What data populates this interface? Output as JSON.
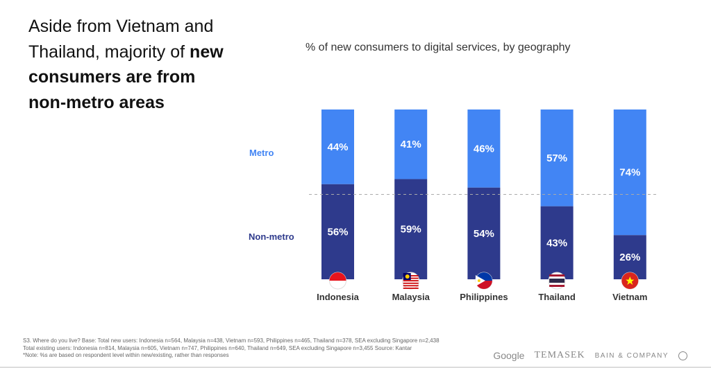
{
  "headline": {
    "part1": "Aside from Vietnam and Thailand, majority of ",
    "bold": "new consumers are from non-metro areas"
  },
  "chart_data": {
    "type": "bar",
    "stacked": true,
    "title": "% of new consumers to digital services, by geography",
    "categories": [
      "Indonesia",
      "Malaysia",
      "Philippines",
      "Thailand",
      "Vietnam"
    ],
    "series": [
      {
        "name": "Metro",
        "values": [
          44,
          41,
          46,
          57,
          74
        ],
        "color": "#4285f4"
      },
      {
        "name": "Non-metro",
        "values": [
          56,
          59,
          54,
          43,
          26
        ],
        "color": "#2e3a8c"
      }
    ],
    "ylim": [
      0,
      100
    ],
    "reference_line": 50,
    "value_suffix": "%"
  },
  "footnote": [
    "S3. Where do you live? Base: Total new users: Indonesia n=564, Malaysia n=438, Vietnam n=593, Philippines n=465, Thailand n=378, SEA excluding Singapore  n=2,438",
    "Total existing  users: Indonesia n=814, Malaysia n=605, Vietnam n=747, Philippines n=640, Thailand n=649, SEA excluding Singapore  n=3,455 Source: Kantar",
    "*Note: %s are based on respondent level within new/existing, rather than responses"
  ],
  "logos": {
    "google": "Google",
    "temasek": "TEMASEK",
    "bain": "BAIN & COMPANY"
  }
}
